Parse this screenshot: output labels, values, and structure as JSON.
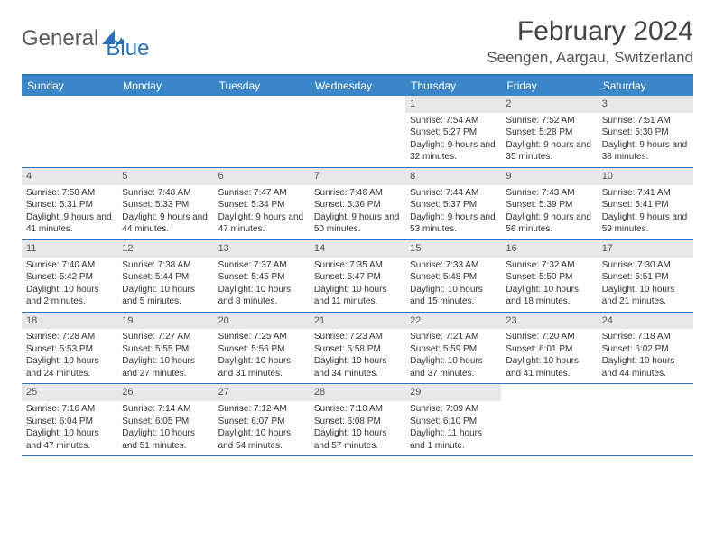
{
  "logo": {
    "part1": "General",
    "part2": "Blue"
  },
  "title": "February 2024",
  "location": "Seengen, Aargau, Switzerland",
  "colors": {
    "header_bg": "#3a86c8",
    "border": "#2d72b8",
    "daynum_bg": "#e8e8e8",
    "text": "#333333"
  },
  "dayHeaders": [
    "Sunday",
    "Monday",
    "Tuesday",
    "Wednesday",
    "Thursday",
    "Friday",
    "Saturday"
  ],
  "weeks": [
    [
      null,
      null,
      null,
      null,
      {
        "n": "1",
        "sr": "Sunrise: 7:54 AM",
        "ss": "Sunset: 5:27 PM",
        "dl": "Daylight: 9 hours and 32 minutes."
      },
      {
        "n": "2",
        "sr": "Sunrise: 7:52 AM",
        "ss": "Sunset: 5:28 PM",
        "dl": "Daylight: 9 hours and 35 minutes."
      },
      {
        "n": "3",
        "sr": "Sunrise: 7:51 AM",
        "ss": "Sunset: 5:30 PM",
        "dl": "Daylight: 9 hours and 38 minutes."
      }
    ],
    [
      {
        "n": "4",
        "sr": "Sunrise: 7:50 AM",
        "ss": "Sunset: 5:31 PM",
        "dl": "Daylight: 9 hours and 41 minutes."
      },
      {
        "n": "5",
        "sr": "Sunrise: 7:48 AM",
        "ss": "Sunset: 5:33 PM",
        "dl": "Daylight: 9 hours and 44 minutes."
      },
      {
        "n": "6",
        "sr": "Sunrise: 7:47 AM",
        "ss": "Sunset: 5:34 PM",
        "dl": "Daylight: 9 hours and 47 minutes."
      },
      {
        "n": "7",
        "sr": "Sunrise: 7:46 AM",
        "ss": "Sunset: 5:36 PM",
        "dl": "Daylight: 9 hours and 50 minutes."
      },
      {
        "n": "8",
        "sr": "Sunrise: 7:44 AM",
        "ss": "Sunset: 5:37 PM",
        "dl": "Daylight: 9 hours and 53 minutes."
      },
      {
        "n": "9",
        "sr": "Sunrise: 7:43 AM",
        "ss": "Sunset: 5:39 PM",
        "dl": "Daylight: 9 hours and 56 minutes."
      },
      {
        "n": "10",
        "sr": "Sunrise: 7:41 AM",
        "ss": "Sunset: 5:41 PM",
        "dl": "Daylight: 9 hours and 59 minutes."
      }
    ],
    [
      {
        "n": "11",
        "sr": "Sunrise: 7:40 AM",
        "ss": "Sunset: 5:42 PM",
        "dl": "Daylight: 10 hours and 2 minutes."
      },
      {
        "n": "12",
        "sr": "Sunrise: 7:38 AM",
        "ss": "Sunset: 5:44 PM",
        "dl": "Daylight: 10 hours and 5 minutes."
      },
      {
        "n": "13",
        "sr": "Sunrise: 7:37 AM",
        "ss": "Sunset: 5:45 PM",
        "dl": "Daylight: 10 hours and 8 minutes."
      },
      {
        "n": "14",
        "sr": "Sunrise: 7:35 AM",
        "ss": "Sunset: 5:47 PM",
        "dl": "Daylight: 10 hours and 11 minutes."
      },
      {
        "n": "15",
        "sr": "Sunrise: 7:33 AM",
        "ss": "Sunset: 5:48 PM",
        "dl": "Daylight: 10 hours and 15 minutes."
      },
      {
        "n": "16",
        "sr": "Sunrise: 7:32 AM",
        "ss": "Sunset: 5:50 PM",
        "dl": "Daylight: 10 hours and 18 minutes."
      },
      {
        "n": "17",
        "sr": "Sunrise: 7:30 AM",
        "ss": "Sunset: 5:51 PM",
        "dl": "Daylight: 10 hours and 21 minutes."
      }
    ],
    [
      {
        "n": "18",
        "sr": "Sunrise: 7:28 AM",
        "ss": "Sunset: 5:53 PM",
        "dl": "Daylight: 10 hours and 24 minutes."
      },
      {
        "n": "19",
        "sr": "Sunrise: 7:27 AM",
        "ss": "Sunset: 5:55 PM",
        "dl": "Daylight: 10 hours and 27 minutes."
      },
      {
        "n": "20",
        "sr": "Sunrise: 7:25 AM",
        "ss": "Sunset: 5:56 PM",
        "dl": "Daylight: 10 hours and 31 minutes."
      },
      {
        "n": "21",
        "sr": "Sunrise: 7:23 AM",
        "ss": "Sunset: 5:58 PM",
        "dl": "Daylight: 10 hours and 34 minutes."
      },
      {
        "n": "22",
        "sr": "Sunrise: 7:21 AM",
        "ss": "Sunset: 5:59 PM",
        "dl": "Daylight: 10 hours and 37 minutes."
      },
      {
        "n": "23",
        "sr": "Sunrise: 7:20 AM",
        "ss": "Sunset: 6:01 PM",
        "dl": "Daylight: 10 hours and 41 minutes."
      },
      {
        "n": "24",
        "sr": "Sunrise: 7:18 AM",
        "ss": "Sunset: 6:02 PM",
        "dl": "Daylight: 10 hours and 44 minutes."
      }
    ],
    [
      {
        "n": "25",
        "sr": "Sunrise: 7:16 AM",
        "ss": "Sunset: 6:04 PM",
        "dl": "Daylight: 10 hours and 47 minutes."
      },
      {
        "n": "26",
        "sr": "Sunrise: 7:14 AM",
        "ss": "Sunset: 6:05 PM",
        "dl": "Daylight: 10 hours and 51 minutes."
      },
      {
        "n": "27",
        "sr": "Sunrise: 7:12 AM",
        "ss": "Sunset: 6:07 PM",
        "dl": "Daylight: 10 hours and 54 minutes."
      },
      {
        "n": "28",
        "sr": "Sunrise: 7:10 AM",
        "ss": "Sunset: 6:08 PM",
        "dl": "Daylight: 10 hours and 57 minutes."
      },
      {
        "n": "29",
        "sr": "Sunrise: 7:09 AM",
        "ss": "Sunset: 6:10 PM",
        "dl": "Daylight: 11 hours and 1 minute."
      },
      null,
      null
    ]
  ]
}
